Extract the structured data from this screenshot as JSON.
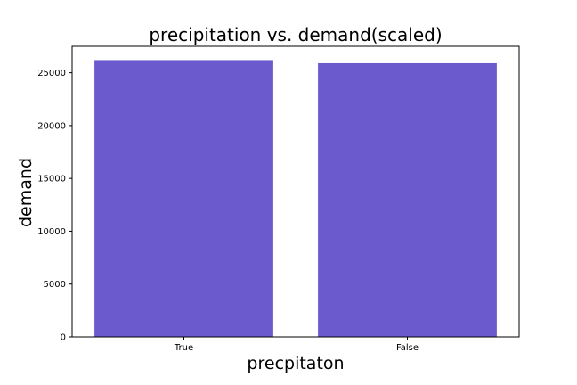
{
  "chart_data": {
    "type": "bar",
    "title": "precipitation vs. demand(scaled)",
    "xlabel": "precpitaton",
    "ylabel": "demand",
    "categories": [
      "True",
      "False"
    ],
    "values": [
      26200,
      25900
    ],
    "ylim": [
      0,
      27500
    ],
    "yticks": [
      0,
      5000,
      10000,
      15000,
      20000,
      25000
    ],
    "ytick_labels": [
      "0",
      "5000",
      "10000",
      "15000",
      "20000",
      "25000"
    ],
    "bar_color": "#6a5acd",
    "grid": false,
    "legend": "none"
  }
}
